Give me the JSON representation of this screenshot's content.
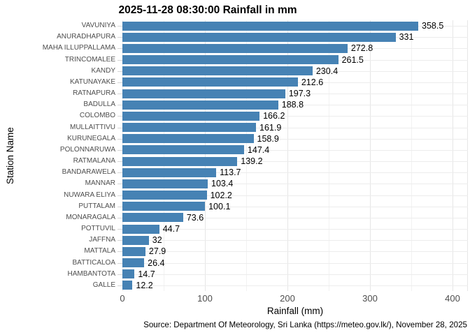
{
  "title": "2025-11-28 08:30:00 Rainfall in mm",
  "caption": "Source: Department Of Meteorology, Sri Lanka (https://meteo.gov.lk/), November 28, 2025",
  "colors": {
    "bar": "#4682b4",
    "axis_text": "#4d4d4d",
    "grid_major": "#e6e6e6",
    "grid_minor": "#f2f2f2",
    "background": "#ffffff"
  },
  "chart_data": {
    "type": "bar",
    "orientation": "horizontal",
    "title": "2025-11-28 08:30:00 Rainfall in mm",
    "xlabel": "Rainfall (mm)",
    "ylabel": "Station Name",
    "categories": [
      "VAVUNIYA",
      "ANURADHAPURA",
      "MAHA ILLUPPALLAMA",
      "TRINCOMALEE",
      "KANDY",
      "KATUNAYAKE",
      "RATNAPURA",
      "BADULLA",
      "COLOMBO",
      "MULLAITTIVU",
      "KURUNEGALA",
      "POLONNARUWA",
      "RATMALANA",
      "BANDARAWELA",
      "MANNAR",
      "NUWARA ELIYA",
      "PUTTALAM",
      "MONARAGALA",
      "POTTUVIL",
      "JAFFNA",
      "MATTALA",
      "BATTICALOA",
      "HAMBANTOTA",
      "GALLE"
    ],
    "values": [
      358.5,
      331,
      272.8,
      261.5,
      230.4,
      212.6,
      197.3,
      188.8,
      166.2,
      161.9,
      158.9,
      147.4,
      139.2,
      113.7,
      103.4,
      102.2,
      100.1,
      73.6,
      44.7,
      32,
      27.9,
      26.4,
      14.7,
      12.2
    ],
    "value_labels": [
      "358.5",
      "331",
      "272.8",
      "261.5",
      "230.4",
      "212.6",
      "197.3",
      "188.8",
      "166.2",
      "161.9",
      "158.9",
      "147.4",
      "139.2",
      "113.7",
      "103.4",
      "102.2",
      "100.1",
      "73.6",
      "44.7",
      "32",
      "27.9",
      "26.4",
      "14.7",
      "12.2"
    ],
    "x_ticks": [
      0,
      100,
      200,
      300,
      400
    ],
    "x_minor_ticks": [
      50,
      150,
      250,
      350
    ],
    "xlim": [
      0,
      418
    ],
    "grid": true,
    "legend": "none",
    "bar_color": "#4682b4"
  }
}
